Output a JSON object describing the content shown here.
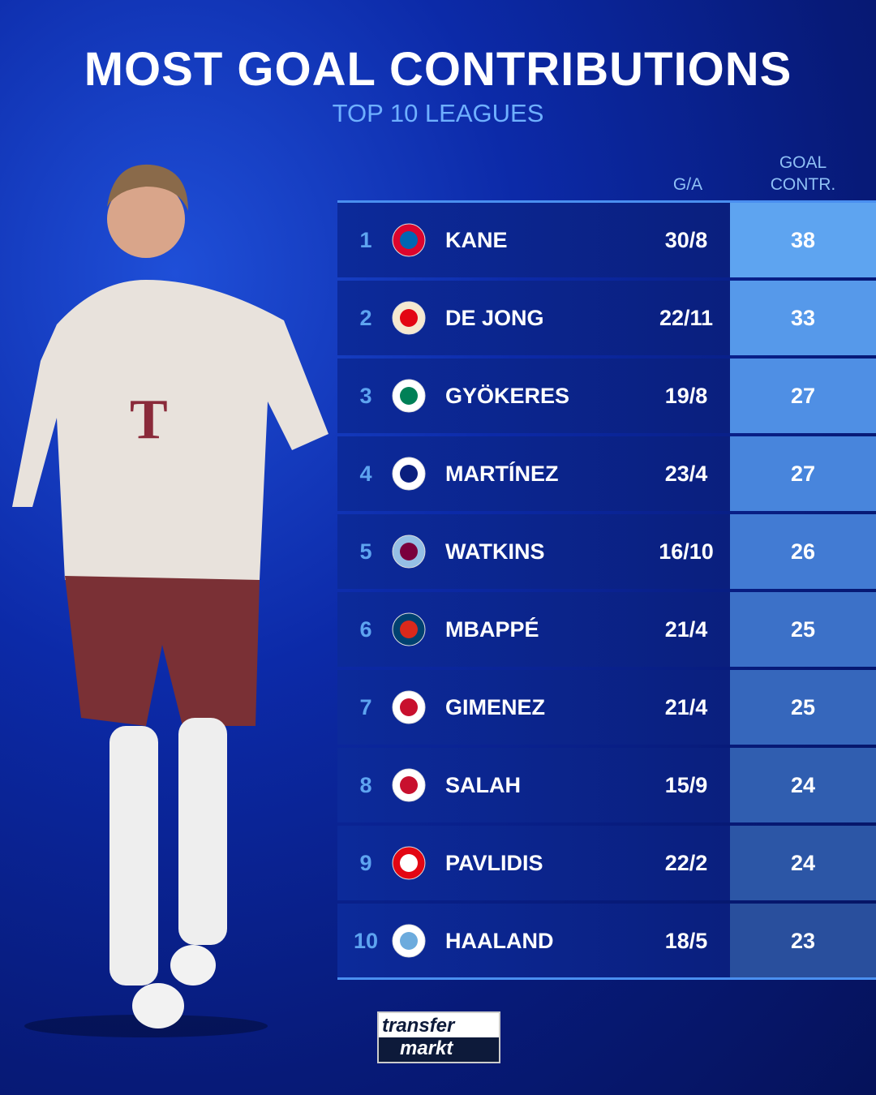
{
  "title": "MOST GOAL CONTRIBUTIONS",
  "subtitle": "TOP 10 LEAGUES",
  "brand": "transfermarkt",
  "colors": {
    "accent": "#5ea4f0",
    "row_bg": "#0c2a9a",
    "background": "#0c2aa8"
  },
  "chart_data": {
    "type": "table",
    "columns": [
      "",
      "",
      "",
      "G/A",
      "GOAL CONTR."
    ],
    "header": {
      "ga": "G/A",
      "gc_line1": "GOAL",
      "gc_line2": "CONTR."
    },
    "rows": [
      {
        "rank": "1",
        "club_icon": "bayern-munich-crest",
        "player": "KANE",
        "ga": "30/8",
        "gc": "38",
        "color": "#5ea4f0"
      },
      {
        "rank": "2",
        "club_icon": "psv-crest",
        "player": "DE JONG",
        "ga": "22/11",
        "gc": "33",
        "color": "#5699ea"
      },
      {
        "rank": "3",
        "club_icon": "sporting-cp-crest",
        "player": "GYÖKERES",
        "ga": "19/8",
        "gc": "27",
        "color": "#4f8fe4"
      },
      {
        "rank": "4",
        "club_icon": "inter-milan-crest",
        "player": "MARTÍNEZ",
        "ga": "23/4",
        "gc": "27",
        "color": "#4885dc"
      },
      {
        "rank": "5",
        "club_icon": "aston-villa-crest",
        "player": "WATKINS",
        "ga": "16/10",
        "gc": "26",
        "color": "#427bd3"
      },
      {
        "rank": "6",
        "club_icon": "psg-crest",
        "player": "MBAPPÉ",
        "ga": "21/4",
        "gc": "25",
        "color": "#3c71c8"
      },
      {
        "rank": "7",
        "club_icon": "feyenoord-crest",
        "player": "GIMENEZ",
        "ga": "21/4",
        "gc": "25",
        "color": "#3667bc"
      },
      {
        "rank": "8",
        "club_icon": "liverpool-crest",
        "player": "SALAH",
        "ga": "15/9",
        "gc": "24",
        "color": "#305eb0"
      },
      {
        "rank": "9",
        "club_icon": "az-alkmaar-crest",
        "player": "PAVLIDIS",
        "ga": "22/2",
        "gc": "24",
        "color": "#2c56a6"
      },
      {
        "rank": "10",
        "club_icon": "manchester-city-crest",
        "player": "HAALAND",
        "ga": "18/5",
        "gc": "23",
        "color": "#294f9d"
      }
    ]
  }
}
